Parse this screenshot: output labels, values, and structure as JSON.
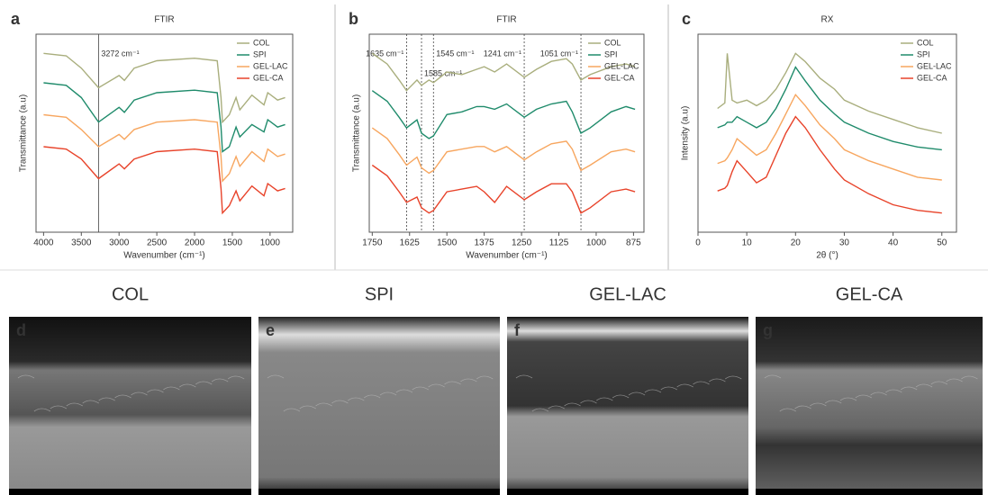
{
  "chart_data": [
    {
      "type": "line",
      "panel": "a",
      "title": "FTIR",
      "xlabel": "Wavenumber (cm⁻¹)",
      "ylabel": "Transmittance (a.u)",
      "xlim": [
        4100,
        700
      ],
      "xticks": [
        4000,
        3500,
        3000,
        2500,
        2000,
        1500,
        1000
      ],
      "x": [
        4000,
        3700,
        3500,
        3272,
        3000,
        2930,
        2800,
        2500,
        2000,
        1700,
        1650,
        1630,
        1540,
        1450,
        1400,
        1240,
        1080,
        1030,
        900,
        800
      ],
      "annotations": [
        {
          "x": 3272,
          "text": "3272 cm⁻¹"
        }
      ],
      "series": [
        {
          "name": "COL",
          "color": "#a9ae7d",
          "values": [
            80,
            79,
            74,
            66,
            71,
            69,
            74,
            77,
            78,
            77,
            62,
            52,
            55,
            62,
            57,
            63,
            59,
            64,
            61,
            62
          ]
        },
        {
          "name": "SPI",
          "color": "#1f8b6b",
          "values": [
            68,
            67,
            62,
            52,
            58,
            56,
            61,
            64,
            65,
            64,
            50,
            40,
            42,
            50,
            46,
            51,
            48,
            53,
            50,
            51
          ]
        },
        {
          "name": "GEL-LAC",
          "color": "#f7a65f",
          "values": [
            55,
            54,
            49,
            42,
            47,
            45,
            49,
            52,
            53,
            52,
            38,
            28,
            31,
            38,
            34,
            40,
            36,
            41,
            38,
            39
          ]
        },
        {
          "name": "GEL-CA",
          "color": "#e8432a",
          "values": [
            42,
            41,
            37,
            29,
            35,
            33,
            37,
            40,
            41,
            40,
            25,
            15,
            18,
            24,
            20,
            26,
            22,
            27,
            24,
            25
          ]
        }
      ]
    },
    {
      "type": "line",
      "panel": "b",
      "title": "FTIR",
      "xlabel": "Wavenumber (cm⁻¹)",
      "ylabel": "Transmittance (a.u)",
      "xlim": [
        1760,
        840
      ],
      "xticks": [
        1750,
        1625,
        1500,
        1375,
        1250,
        1125,
        1000,
        875
      ],
      "x": [
        1750,
        1700,
        1660,
        1635,
        1600,
        1585,
        1560,
        1545,
        1500,
        1450,
        1400,
        1375,
        1340,
        1300,
        1241,
        1200,
        1150,
        1100,
        1080,
        1051,
        1020,
        950,
        900,
        870
      ],
      "annotations": [
        {
          "x": 1635,
          "text": "1635 cm⁻¹"
        },
        {
          "x": 1585,
          "text": "1585 cm⁻¹"
        },
        {
          "x": 1545,
          "text": "1545 cm⁻¹"
        },
        {
          "x": 1241,
          "text": "1241 cm⁻¹"
        },
        {
          "x": 1051,
          "text": "1051 cm⁻¹"
        }
      ],
      "series": [
        {
          "name": "COL",
          "color": "#a9ae7d",
          "values": [
            80,
            76,
            70,
            66,
            70,
            68,
            70,
            69,
            73,
            72,
            74,
            75,
            73,
            76,
            71,
            74,
            77,
            78,
            76,
            70,
            72,
            75,
            76,
            75
          ]
        },
        {
          "name": "SPI",
          "color": "#1f8b6b",
          "values": [
            66,
            62,
            56,
            52,
            55,
            50,
            48,
            49,
            57,
            58,
            60,
            60,
            59,
            61,
            56,
            59,
            61,
            62,
            58,
            50,
            52,
            58,
            60,
            59
          ]
        },
        {
          "name": "GEL-LAC",
          "color": "#f7a65f",
          "values": [
            52,
            48,
            42,
            38,
            41,
            37,
            35,
            36,
            43,
            44,
            45,
            45,
            43,
            45,
            40,
            43,
            46,
            47,
            44,
            36,
            38,
            43,
            44,
            43
          ]
        },
        {
          "name": "GEL-CA",
          "color": "#e8432a",
          "values": [
            38,
            34,
            28,
            24,
            26,
            22,
            20,
            21,
            28,
            29,
            30,
            28,
            24,
            30,
            25,
            28,
            31,
            31,
            28,
            20,
            22,
            28,
            29,
            28
          ]
        }
      ]
    },
    {
      "type": "line",
      "panel": "c",
      "title": "RX",
      "xlabel": "2θ (°)",
      "ylabel": "Intensity (a.u)",
      "xlim": [
        0,
        53
      ],
      "xticks": [
        0,
        10,
        20,
        30,
        40,
        50
      ],
      "x": [
        4,
        5.5,
        6,
        7,
        8,
        10,
        12,
        14,
        16,
        18,
        20,
        22,
        25,
        28,
        30,
        35,
        40,
        45,
        50
      ],
      "series": [
        {
          "name": "COL",
          "color": "#a9ae7d",
          "values": [
            55,
            57,
            75,
            58,
            57,
            58,
            56,
            58,
            62,
            68,
            75,
            72,
            66,
            62,
            58,
            54,
            51,
            48,
            46
          ]
        },
        {
          "name": "SPI",
          "color": "#1f8b6b",
          "values": [
            48,
            49,
            50,
            50,
            52,
            50,
            48,
            50,
            55,
            62,
            70,
            65,
            58,
            53,
            50,
            46,
            43,
            41,
            40
          ]
        },
        {
          "name": "GEL-LAC",
          "color": "#f7a65f",
          "values": [
            35,
            36,
            37,
            40,
            44,
            41,
            38,
            40,
            46,
            53,
            60,
            56,
            49,
            44,
            40,
            36,
            33,
            30,
            29
          ]
        },
        {
          "name": "GEL-CA",
          "color": "#e8432a",
          "values": [
            25,
            26,
            27,
            32,
            36,
            32,
            28,
            30,
            38,
            46,
            52,
            48,
            40,
            33,
            29,
            24,
            20,
            18,
            17
          ]
        }
      ]
    }
  ],
  "images": {
    "labels": [
      "COL",
      "SPI",
      "GEL-LAC",
      "GEL-CA"
    ],
    "panels": [
      "d",
      "e",
      "f",
      "g"
    ]
  }
}
